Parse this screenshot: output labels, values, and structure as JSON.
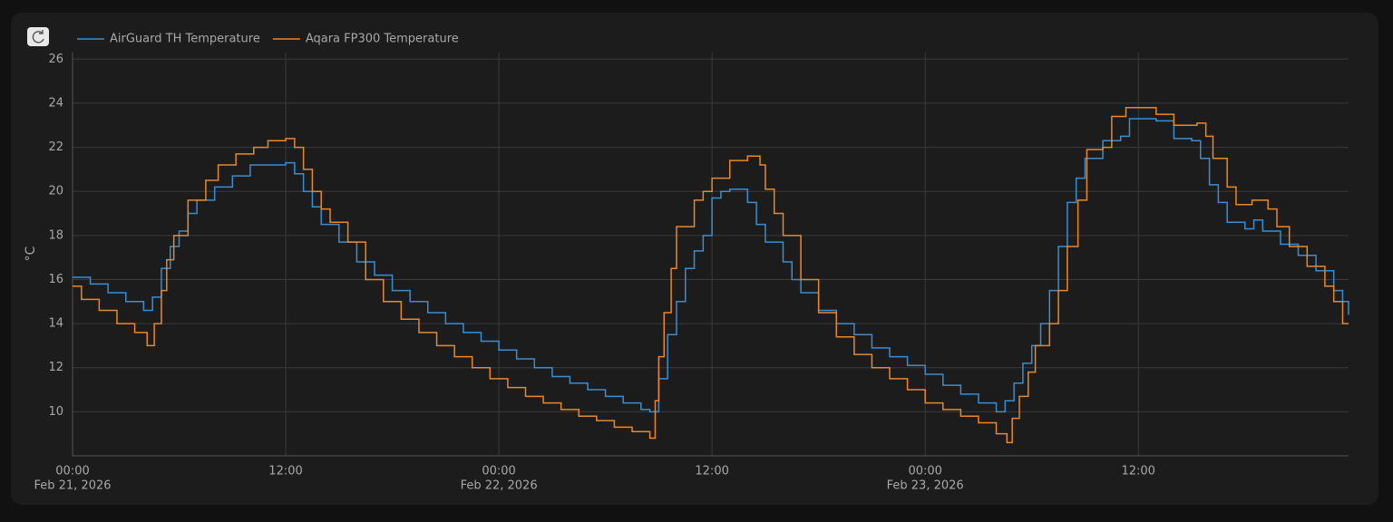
{
  "chart_data": {
    "type": "step-line",
    "y_label": "°C",
    "xlim": [
      "2026-02-21 00:00",
      "2026-02-23 23:50"
    ],
    "ylim": [
      8,
      26.3
    ],
    "yticks": [
      10,
      12,
      14,
      16,
      18,
      20,
      22,
      24,
      26
    ],
    "xticks": [
      {
        "value": "2026-02-21 00:00",
        "label": "00:00",
        "date": "Feb 21, 2026"
      },
      {
        "value": "2026-02-21 12:00",
        "label": "12:00"
      },
      {
        "value": "2026-02-22 00:00",
        "label": "00:00",
        "date": "Feb 22, 2026"
      },
      {
        "value": "2026-02-22 12:00",
        "label": "12:00"
      },
      {
        "value": "2026-02-23 00:00",
        "label": "00:00",
        "date": "Feb 23, 2026"
      },
      {
        "value": "2026-02-23 12:00",
        "label": "12:00"
      }
    ],
    "grid": true,
    "legend": "top-left",
    "series": [
      {
        "name": "AirGuard TH Temperature",
        "color": "#3b8dd0",
        "x": [
          "2026-02-21 00:00",
          "2026-02-21 01:00",
          "2026-02-21 02:00",
          "2026-02-21 03:00",
          "2026-02-21 04:00",
          "2026-02-21 04:30",
          "2026-02-21 05:00",
          "2026-02-21 05:30",
          "2026-02-21 06:00",
          "2026-02-21 06:30",
          "2026-02-21 07:00",
          "2026-02-21 08:00",
          "2026-02-21 09:00",
          "2026-02-21 10:00",
          "2026-02-21 12:00",
          "2026-02-21 12:30",
          "2026-02-21 13:00",
          "2026-02-21 13:30",
          "2026-02-21 14:00",
          "2026-02-21 15:00",
          "2026-02-21 16:00",
          "2026-02-21 17:00",
          "2026-02-21 18:00",
          "2026-02-21 19:00",
          "2026-02-21 20:00",
          "2026-02-21 21:00",
          "2026-02-21 22:00",
          "2026-02-21 23:00",
          "2026-02-22 00:00",
          "2026-02-22 01:00",
          "2026-02-22 02:00",
          "2026-02-22 03:00",
          "2026-02-22 04:00",
          "2026-02-22 05:00",
          "2026-02-22 06:00",
          "2026-02-22 07:00",
          "2026-02-22 08:00",
          "2026-02-22 08:30",
          "2026-02-22 09:00",
          "2026-02-22 09:30",
          "2026-02-22 10:00",
          "2026-02-22 10:30",
          "2026-02-22 11:00",
          "2026-02-22 11:30",
          "2026-02-22 12:00",
          "2026-02-22 12:30",
          "2026-02-22 13:00",
          "2026-02-22 14:00",
          "2026-02-22 14:30",
          "2026-02-22 15:00",
          "2026-02-22 16:00",
          "2026-02-22 16:30",
          "2026-02-22 17:00",
          "2026-02-22 18:00",
          "2026-02-22 19:00",
          "2026-02-22 20:00",
          "2026-02-22 21:00",
          "2026-02-22 22:00",
          "2026-02-22 23:00",
          "2026-02-23 00:00",
          "2026-02-23 01:00",
          "2026-02-23 02:00",
          "2026-02-23 03:00",
          "2026-02-23 04:00",
          "2026-02-23 04:30",
          "2026-02-23 05:00",
          "2026-02-23 05:30",
          "2026-02-23 06:00",
          "2026-02-23 06:30",
          "2026-02-23 07:00",
          "2026-02-23 07:30",
          "2026-02-23 08:00",
          "2026-02-23 08:30",
          "2026-02-23 09:00",
          "2026-02-23 10:00",
          "2026-02-23 11:00",
          "2026-02-23 11:30",
          "2026-02-23 13:00",
          "2026-02-23 14:00",
          "2026-02-23 15:00",
          "2026-02-23 15:30",
          "2026-02-23 16:00",
          "2026-02-23 16:30",
          "2026-02-23 17:00",
          "2026-02-23 18:00",
          "2026-02-23 18:30",
          "2026-02-23 19:00",
          "2026-02-23 20:00",
          "2026-02-23 21:00",
          "2026-02-23 22:00",
          "2026-02-23 23:00",
          "2026-02-23 23:30",
          "2026-02-23 23:50"
        ],
        "values": [
          16.1,
          15.8,
          15.4,
          15.0,
          14.6,
          15.2,
          16.5,
          17.5,
          18.2,
          19.0,
          19.6,
          20.2,
          20.7,
          21.2,
          21.3,
          20.8,
          20.0,
          19.3,
          18.5,
          17.7,
          16.8,
          16.2,
          15.5,
          15.0,
          14.5,
          14.0,
          13.6,
          13.2,
          12.8,
          12.4,
          12.0,
          11.6,
          11.3,
          11.0,
          10.7,
          10.4,
          10.1,
          10.0,
          11.5,
          13.5,
          15.0,
          16.5,
          17.3,
          18.0,
          19.7,
          20.0,
          20.1,
          19.5,
          18.5,
          17.7,
          16.8,
          16.0,
          15.4,
          14.6,
          14.0,
          13.5,
          12.9,
          12.5,
          12.1,
          11.7,
          11.2,
          10.8,
          10.4,
          10.0,
          10.5,
          11.3,
          12.2,
          13.0,
          14.0,
          15.5,
          17.5,
          19.5,
          20.6,
          21.5,
          22.3,
          22.5,
          23.3,
          23.2,
          22.4,
          22.3,
          21.5,
          20.3,
          19.5,
          18.6,
          18.3,
          18.7,
          18.2,
          17.6,
          17.1,
          16.4,
          15.5,
          15.0,
          14.4
        ]
      },
      {
        "name": "Aqara FP300 Temperature",
        "color": "#e8872c",
        "x": [
          "2026-02-21 00:00",
          "2026-02-21 00:30",
          "2026-02-21 01:30",
          "2026-02-21 02:30",
          "2026-02-21 03:30",
          "2026-02-21 04:12",
          "2026-02-21 04:36",
          "2026-02-21 05:00",
          "2026-02-21 05:18",
          "2026-02-21 05:42",
          "2026-02-21 06:30",
          "2026-02-21 07:30",
          "2026-02-21 08:12",
          "2026-02-21 09:12",
          "2026-02-21 10:12",
          "2026-02-21 11:00",
          "2026-02-21 12:00",
          "2026-02-21 12:30",
          "2026-02-21 13:00",
          "2026-02-21 13:30",
          "2026-02-21 14:00",
          "2026-02-21 14:30",
          "2026-02-21 15:30",
          "2026-02-21 16:30",
          "2026-02-21 17:30",
          "2026-02-21 18:30",
          "2026-02-21 19:30",
          "2026-02-21 20:30",
          "2026-02-21 21:30",
          "2026-02-21 22:30",
          "2026-02-21 23:30",
          "2026-02-22 00:30",
          "2026-02-22 01:30",
          "2026-02-22 02:30",
          "2026-02-22 03:30",
          "2026-02-22 04:30",
          "2026-02-22 05:30",
          "2026-02-22 06:30",
          "2026-02-22 07:30",
          "2026-02-22 08:30",
          "2026-02-22 08:48",
          "2026-02-22 09:00",
          "2026-02-22 09:18",
          "2026-02-22 09:42",
          "2026-02-22 10:00",
          "2026-02-22 11:00",
          "2026-02-22 11:30",
          "2026-02-22 12:00",
          "2026-02-22 13:00",
          "2026-02-22 14:00",
          "2026-02-22 14:42",
          "2026-02-22 15:00",
          "2026-02-22 15:30",
          "2026-02-22 16:00",
          "2026-02-22 17:00",
          "2026-02-22 18:00",
          "2026-02-22 19:00",
          "2026-02-22 20:00",
          "2026-02-22 21:00",
          "2026-02-22 22:00",
          "2026-02-22 23:00",
          "2026-02-23 00:00",
          "2026-02-23 01:00",
          "2026-02-23 02:00",
          "2026-02-23 03:00",
          "2026-02-23 04:00",
          "2026-02-23 04:36",
          "2026-02-23 04:54",
          "2026-02-23 05:18",
          "2026-02-23 05:48",
          "2026-02-23 06:12",
          "2026-02-23 07:00",
          "2026-02-23 07:30",
          "2026-02-23 08:00",
          "2026-02-23 08:36",
          "2026-02-23 09:06",
          "2026-02-23 10:00",
          "2026-02-23 10:30",
          "2026-02-23 11:18",
          "2026-02-23 13:00",
          "2026-02-23 14:00",
          "2026-02-23 15:18",
          "2026-02-23 15:48",
          "2026-02-23 16:12",
          "2026-02-23 17:00",
          "2026-02-23 17:30",
          "2026-02-23 18:24",
          "2026-02-23 19:18",
          "2026-02-23 19:48",
          "2026-02-23 20:30",
          "2026-02-23 21:30",
          "2026-02-23 22:30",
          "2026-02-23 23:00",
          "2026-02-23 23:30",
          "2026-02-23 23:50"
        ],
        "values": [
          15.7,
          15.1,
          14.6,
          14.0,
          13.6,
          13.0,
          14.0,
          15.5,
          16.9,
          18.0,
          19.6,
          20.5,
          21.2,
          21.7,
          22.0,
          22.3,
          22.4,
          22.0,
          21.0,
          20.0,
          19.2,
          18.6,
          17.7,
          16.0,
          15.0,
          14.2,
          13.6,
          13.0,
          12.5,
          12.0,
          11.5,
          11.1,
          10.7,
          10.4,
          10.1,
          9.8,
          9.6,
          9.3,
          9.1,
          8.8,
          10.5,
          12.5,
          14.5,
          16.5,
          18.4,
          19.6,
          20.0,
          20.6,
          21.4,
          21.6,
          21.2,
          20.1,
          19.0,
          18.0,
          16.0,
          14.5,
          13.4,
          12.6,
          12.0,
          11.5,
          11.0,
          10.4,
          10.1,
          9.8,
          9.5,
          9.0,
          8.6,
          9.7,
          10.7,
          11.8,
          13.0,
          14.0,
          15.5,
          17.5,
          19.6,
          21.9,
          22.0,
          23.4,
          23.8,
          23.5,
          23.0,
          23.1,
          22.5,
          21.5,
          20.2,
          19.4,
          19.6,
          19.2,
          18.4,
          17.5,
          16.6,
          15.7,
          15.0,
          14.0,
          14.0
        ]
      }
    ]
  }
}
